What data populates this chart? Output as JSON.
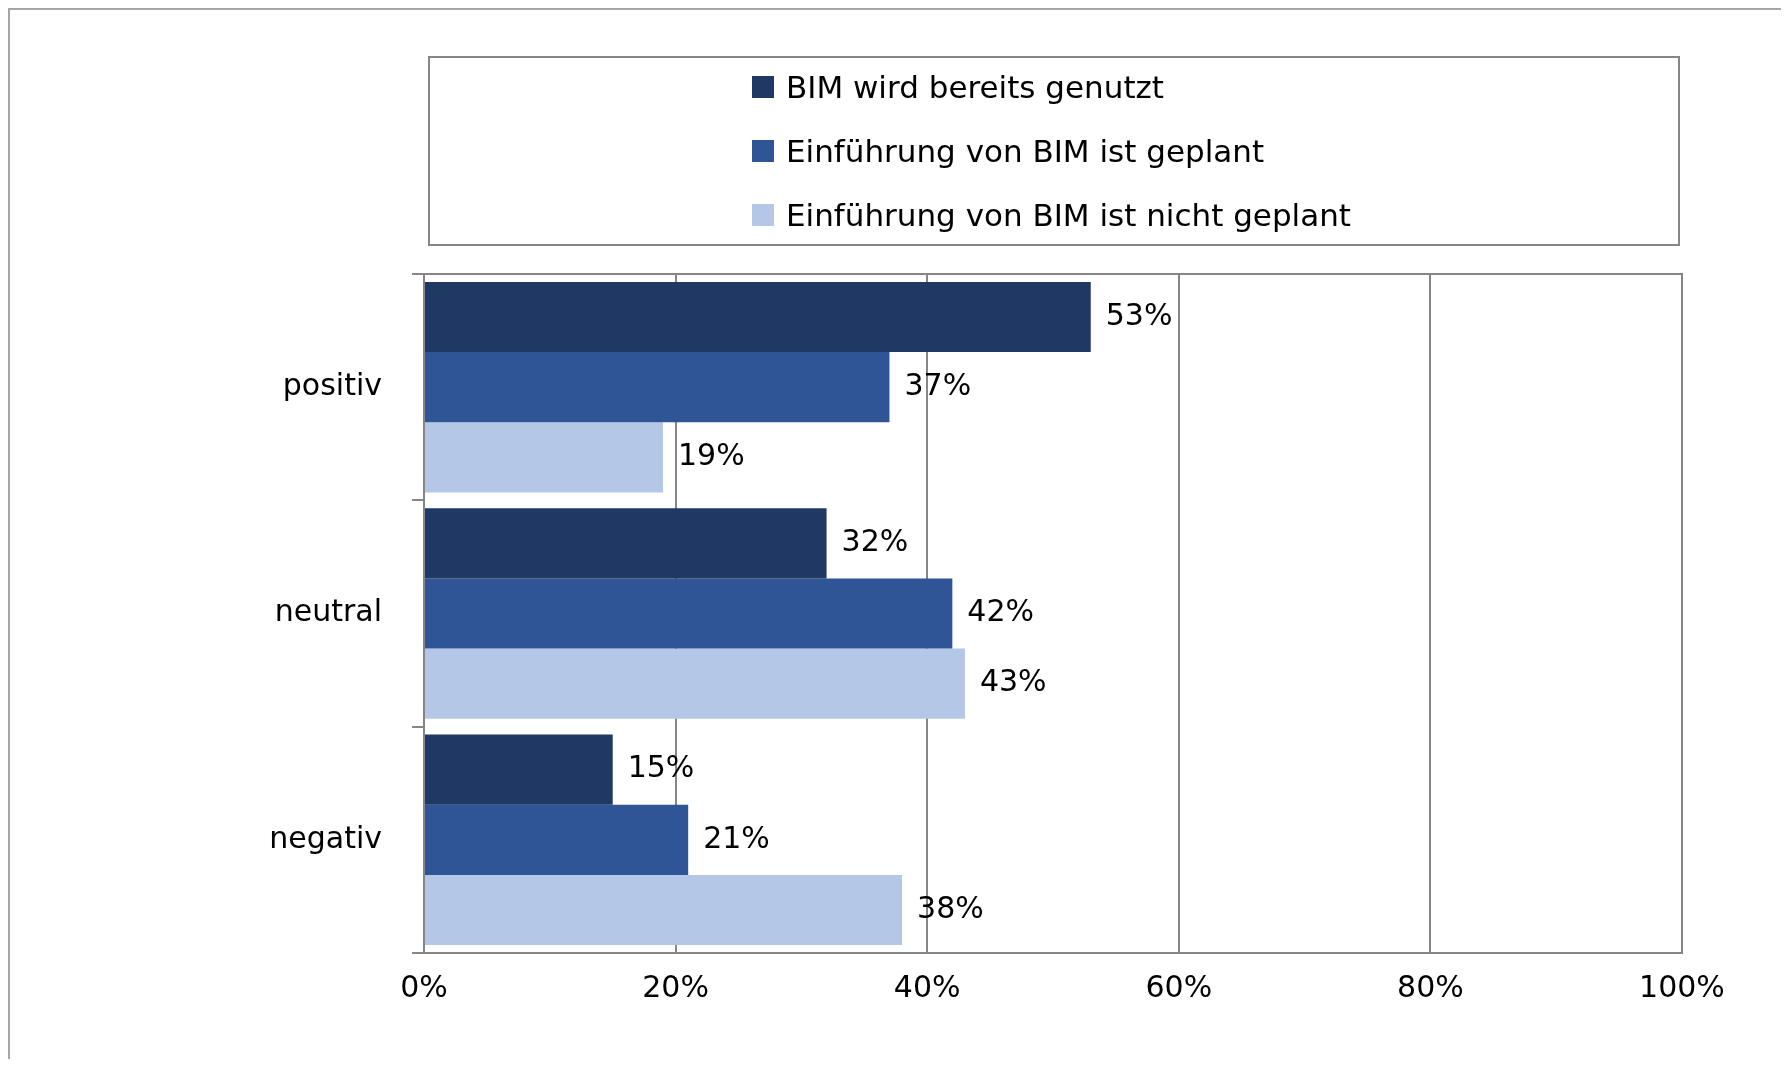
{
  "chart_data": {
    "type": "bar",
    "orientation": "horizontal",
    "categories": [
      "positiv",
      "neutral",
      "negativ"
    ],
    "series": [
      {
        "name": "BIM wird bereits genutzt",
        "color": "#1f3864",
        "values": [
          53,
          32,
          15
        ],
        "value_labels": [
          "53%",
          "32%",
          "15%"
        ]
      },
      {
        "name": "Einführung von BIM ist geplant",
        "color": "#2f5597",
        "values": [
          37,
          42,
          21
        ],
        "value_labels": [
          "37%",
          "42%",
          "21%"
        ]
      },
      {
        "name": "Einführung von BIM ist nicht geplant",
        "color": "#b4c7e7",
        "values": [
          19,
          43,
          38
        ],
        "value_labels": [
          "19%",
          "43%",
          "38%"
        ]
      }
    ],
    "xlim": [
      0,
      100
    ],
    "xticks": [
      {
        "value": 0,
        "label": "0%"
      },
      {
        "value": 20,
        "label": "20%"
      },
      {
        "value": 40,
        "label": "40%"
      },
      {
        "value": 60,
        "label": "60%"
      },
      {
        "value": 80,
        "label": "80%"
      },
      {
        "value": 100,
        "label": "100%"
      }
    ],
    "grid": "x",
    "legend": "top"
  }
}
